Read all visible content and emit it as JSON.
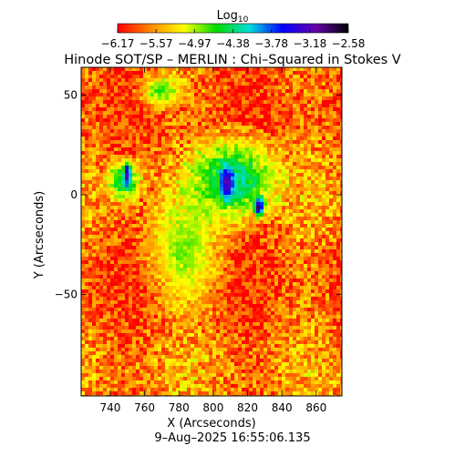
{
  "chart_data": {
    "type": "heatmap",
    "title": "Hinode SOT/SP – MERLIN : Chi–Squared in Stokes V",
    "xlabel": "X (Arcseconds)",
    "ylabel": "Y (Arcseconds)",
    "timestamp": "9–Aug–2025 16:55:06.135",
    "xlim": [
      723,
      875
    ],
    "ylim": [
      -101,
      64
    ],
    "x_ticks": [
      740,
      760,
      780,
      800,
      820,
      840,
      860
    ],
    "y_ticks": [
      50,
      0,
      -50
    ],
    "colorbar": {
      "label_base": "Log",
      "label_sub": "10",
      "ticks": [
        "−6.17",
        "−5.57",
        "−4.97",
        "−4.38",
        "−3.78",
        "−3.18",
        "−2.58"
      ],
      "range": [
        -6.17,
        -2.58
      ],
      "colormap": [
        "#ff0000",
        "#ff8800",
        "#ffff00",
        "#00dd00",
        "#00dddd",
        "#0000ff",
        "#6600aa",
        "#000000"
      ]
    },
    "regions": [
      {
        "x": 812,
        "y": 8,
        "rx": 26,
        "ry": 22,
        "level": -4.1
      },
      {
        "x": 748,
        "y": 7,
        "rx": 11,
        "ry": 11,
        "level": -4.2
      },
      {
        "x": 770,
        "y": 52,
        "rx": 14,
        "ry": 9,
        "level": -4.6
      },
      {
        "x": 783,
        "y": -28,
        "rx": 22,
        "ry": 30,
        "level": -4.8
      },
      {
        "x": 808,
        "y": 6,
        "rx": 4,
        "ry": 9,
        "level": -3.1
      },
      {
        "x": 827,
        "y": -6,
        "rx": 3,
        "ry": 5,
        "level": -2.8
      },
      {
        "x": 750,
        "y": 10,
        "rx": 2,
        "ry": 6,
        "level": -3.0
      }
    ],
    "background_level": -5.75
  }
}
